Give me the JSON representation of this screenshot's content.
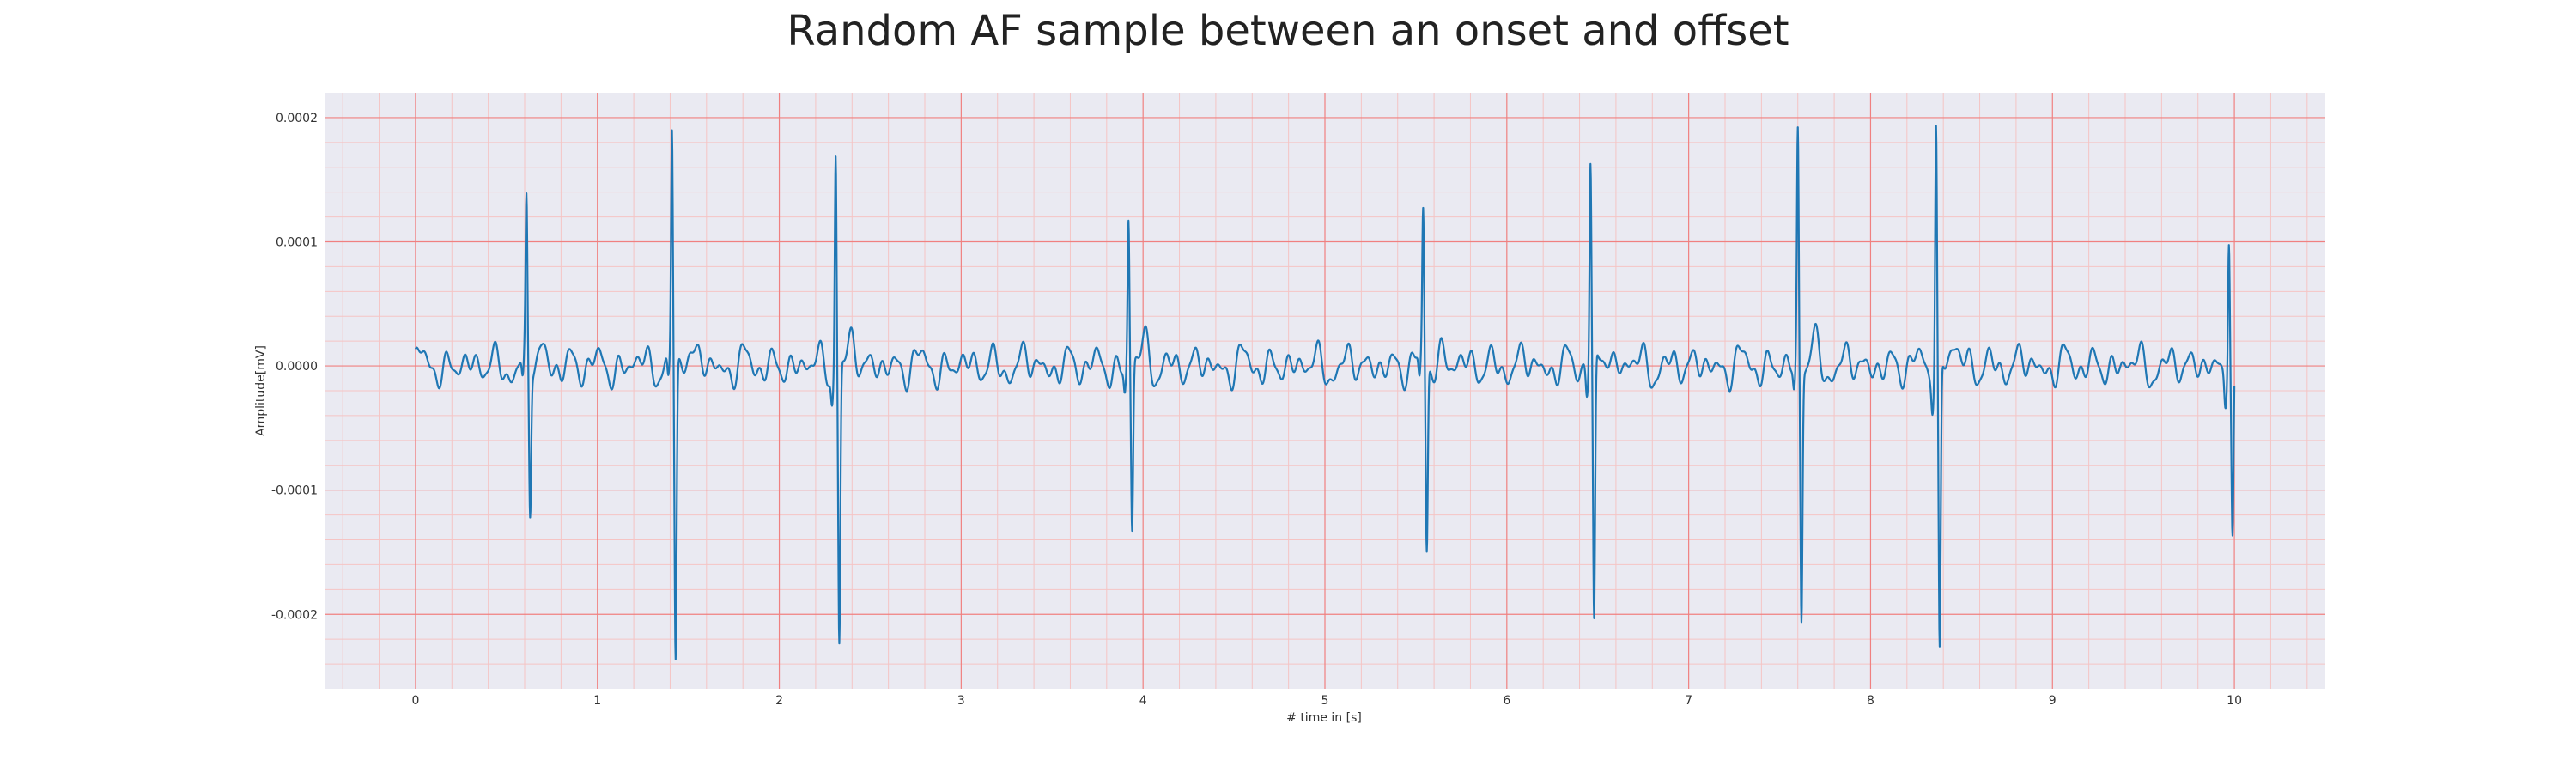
{
  "chart_data": {
    "type": "line",
    "title": "Random AF sample between an onset and offset",
    "xlabel": "# time in [s]",
    "ylabel": "Amplitude[mV]",
    "xlim": [
      -0.5,
      10.5
    ],
    "ylim": [
      -0.00026,
      0.00022
    ],
    "x_ticks": [
      0,
      1,
      2,
      3,
      4,
      5,
      6,
      7,
      8,
      9,
      10
    ],
    "x_tick_labels": [
      "0",
      "1",
      "2",
      "3",
      "4",
      "5",
      "6",
      "7",
      "8",
      "9",
      "10"
    ],
    "y_ticks": [
      0.0002,
      0.0001,
      0.0,
      -0.0001,
      -0.0002
    ],
    "y_tick_labels": [
      "0.0002",
      "0.0001",
      "0.0000",
      "-0.0001",
      "-0.0002"
    ],
    "grid": true,
    "minor_grid": true,
    "colors": {
      "background": "#eaeaf2",
      "major_grid": "#f08080",
      "minor_grid": "#f5c4c4",
      "line": "#1f77b4"
    },
    "series": [
      {
        "beats": [
          {
            "t": 0.61,
            "peak": 0.000121,
            "trough": -0.00012
          },
          {
            "t": 1.41,
            "peak": 0.000188,
            "trough": -0.000237
          },
          {
            "t": 2.31,
            "peak": 0.00018,
            "trough": -0.000222
          },
          {
            "t": 3.92,
            "peak": 0.000117,
            "trough": -0.000134
          },
          {
            "t": 5.54,
            "peak": 0.000118,
            "trough": -0.000151
          },
          {
            "t": 6.46,
            "peak": 0.000162,
            "trough": -0.000218
          },
          {
            "t": 7.6,
            "peak": 0.000186,
            "trough": -0.000202
          },
          {
            "t": 8.36,
            "peak": 0.0002,
            "trough": -0.000235
          },
          {
            "t": 9.97,
            "peak": 0.000116,
            "trough": -0.000142
          }
        ],
        "start": 0.0,
        "end": 10.0
      }
    ]
  }
}
